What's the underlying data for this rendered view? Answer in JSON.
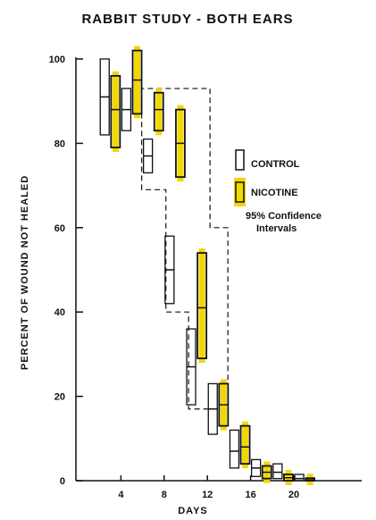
{
  "chart_data": {
    "type": "box",
    "title": "RABBIT STUDY - BOTH EARS",
    "xlabel": "DAYS",
    "ylabel": "PERCENT OF WOUND NOT HEALED",
    "xlim": [
      0,
      24
    ],
    "ylim": [
      0,
      100
    ],
    "x_ticks": [
      4,
      8,
      12,
      16,
      20
    ],
    "y_ticks": [
      0,
      20,
      40,
      60,
      80,
      100
    ],
    "legend": {
      "placement": "right",
      "entries": [
        "CONTROL",
        "NICOTINE"
      ],
      "note_line1": "95% Confidence",
      "note_line2": "Intervals"
    },
    "series": [
      {
        "name": "CONTROL",
        "color": "#ffffff",
        "points": [
          {
            "day": 2.5,
            "low": 82,
            "mid": 91,
            "high": 100
          },
          {
            "day": 4.5,
            "low": 83,
            "mid": 88,
            "high": 93
          },
          {
            "day": 6.5,
            "low": 73,
            "mid": 77,
            "high": 81
          },
          {
            "day": 8.5,
            "low": 42,
            "mid": 50,
            "high": 58
          },
          {
            "day": 10.5,
            "low": 18,
            "mid": 27,
            "high": 36
          },
          {
            "day": 12.5,
            "low": 11,
            "mid": 17,
            "high": 23
          },
          {
            "day": 14.5,
            "low": 3,
            "mid": 7,
            "high": 12
          },
          {
            "day": 16.5,
            "low": 1,
            "mid": 3,
            "high": 5
          },
          {
            "day": 18.5,
            "low": 0.5,
            "mid": 2,
            "high": 4
          },
          {
            "day": 20.5,
            "low": 0,
            "mid": 0.5,
            "high": 1.5
          }
        ]
      },
      {
        "name": "NICOTINE",
        "color": "#f2d800",
        "points": [
          {
            "day": 3.5,
            "low": 79,
            "mid": 88,
            "high": 96
          },
          {
            "day": 5.5,
            "low": 87,
            "mid": 95,
            "high": 102
          },
          {
            "day": 7.5,
            "low": 83,
            "mid": 88,
            "high": 92
          },
          {
            "day": 9.5,
            "low": 72,
            "mid": 80,
            "high": 88
          },
          {
            "day": 11.5,
            "low": 29,
            "mid": 41,
            "high": 54
          },
          {
            "day": 13.5,
            "low": 13,
            "mid": 18,
            "high": 23
          },
          {
            "day": 15.5,
            "low": 4,
            "mid": 8,
            "high": 13
          },
          {
            "day": 17.5,
            "low": 0.5,
            "mid": 2,
            "high": 3.5
          },
          {
            "day": 19.5,
            "low": 0,
            "mid": 0.7,
            "high": 1.5
          },
          {
            "day": 21.5,
            "low": 0,
            "mid": 0.2,
            "high": 0.6
          }
        ]
      }
    ],
    "dashed_envelope_days": [
      6.5,
      10.5
    ],
    "dashed_envelope_percent": [
      60,
      69,
      93,
      40,
      17
    ]
  }
}
